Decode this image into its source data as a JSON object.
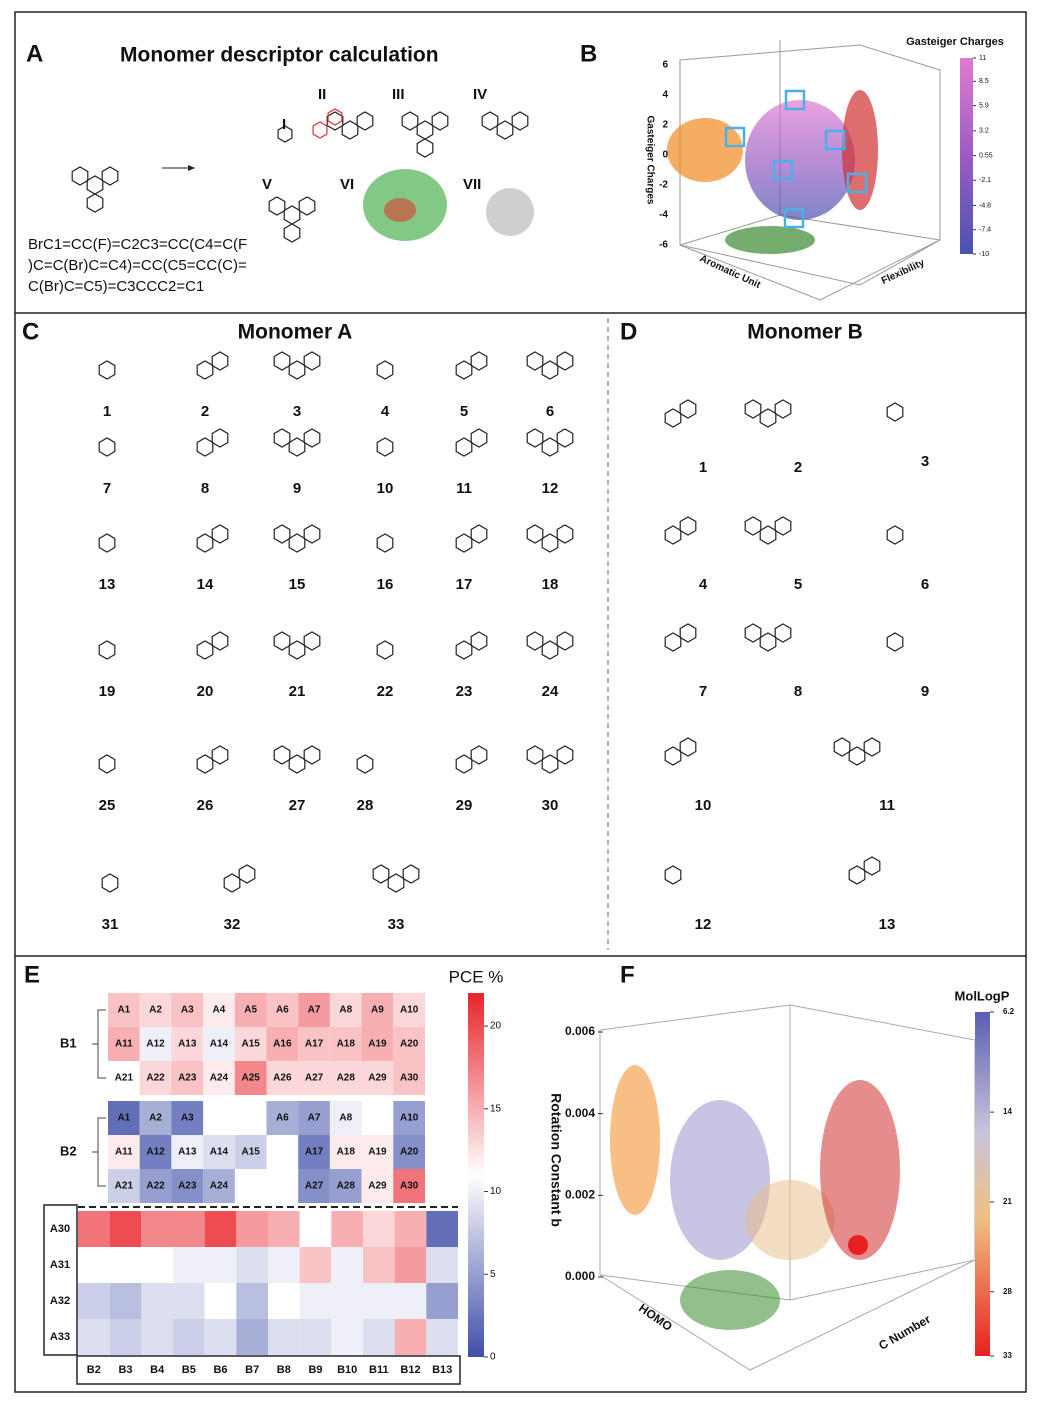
{
  "panels": {
    "A": {
      "label": "A",
      "title": "Monomer descriptor calculation",
      "numerals": [
        "I",
        "II",
        "III",
        "IV",
        "V",
        "VI",
        "VII"
      ],
      "smiles": [
        "BrC1=CC(F)=C2C3=CC(C4=C(F",
        ")C=C(Br)C=C4)=CC(C5=CC(C)=",
        "C(Br)C=C5)=C3CCC2=C1"
      ]
    },
    "B": {
      "label": "B",
      "colorbar_title": "Gasteiger Charges",
      "colorbar_lim": [
        -10,
        11
      ],
      "colorbar_ticks": [
        11,
        8.5,
        5.9,
        3.2,
        0.55,
        -2.1,
        -4.8,
        -7.4,
        -10
      ],
      "yticks": [
        6,
        4,
        2,
        0,
        -2,
        -4,
        -6
      ],
      "axis_labels": [
        "Gasteiger Charges",
        "Aromatic Unit",
        "Flexibility"
      ]
    },
    "C": {
      "label": "C",
      "title": "Monomer A",
      "numbers": [
        1,
        2,
        3,
        4,
        5,
        6,
        7,
        8,
        9,
        10,
        11,
        12,
        13,
        14,
        15,
        16,
        17,
        18,
        19,
        20,
        21,
        22,
        23,
        24,
        25,
        26,
        27,
        28,
        29,
        30,
        31,
        32,
        33
      ]
    },
    "D": {
      "label": "D",
      "title": "Monomer B",
      "numbers": [
        1,
        2,
        3,
        4,
        5,
        6,
        7,
        8,
        9,
        10,
        11,
        12,
        13
      ]
    },
    "E": {
      "label": "E",
      "colorbar": {
        "title": "PCE %",
        "lim": [
          0,
          22
        ],
        "ticks": [
          0,
          5,
          10,
          15,
          20
        ]
      },
      "groups": [
        {
          "name": "B1",
          "cells": [
            [
              "A1",
              "A2",
              "A3",
              "A4",
              "A5",
              "A6",
              "A7",
              "A8",
              "A9",
              "A10"
            ],
            [
              "A11",
              "A12",
              "A13",
              "A14",
              "A15",
              "A16",
              "A17",
              "A18",
              "A19",
              "A20"
            ],
            [
              "A21",
              "A22",
              "A23",
              "A24",
              "A25",
              "A26",
              "A27",
              "A28",
              "A29",
              "A30"
            ]
          ],
          "values": [
            [
              14,
              13,
              14,
              12,
              15,
              14,
              16,
              13,
              15,
              13
            ],
            [
              15,
              10,
              13,
              10,
              13,
              15,
              14,
              14,
              15,
              14
            ],
            [
              11,
              13,
              14,
              12,
              17,
              13,
              13,
              13,
              13,
              14
            ]
          ]
        },
        {
          "name": "B2",
          "cells": [
            [
              "A1",
              "A2",
              "A3",
              null,
              null,
              "A6",
              "A7",
              "A8",
              null,
              "A10"
            ],
            [
              "A11",
              "A12",
              "A13",
              "A14",
              "A15",
              null,
              "A17",
              "A18",
              "A19",
              "A20"
            ],
            [
              "A21",
              "A22",
              "A23",
              "A24",
              null,
              null,
              "A27",
              "A28",
              "A29",
              "A30"
            ]
          ],
          "values": [
            [
              2,
              6,
              3,
              null,
              null,
              6,
              5,
              10,
              null,
              5
            ],
            [
              12,
              3,
              10,
              9,
              8,
              null,
              3,
              12,
              12,
              4
            ],
            [
              8,
              5,
              4,
              6,
              null,
              null,
              4,
              5,
              12,
              18
            ]
          ]
        }
      ],
      "bottom": {
        "rows": [
          "A30",
          "A31",
          "A32",
          "A33"
        ],
        "cols": [
          "B2",
          "B3",
          "B4",
          "B5",
          "B6",
          "B7",
          "B8",
          "B9",
          "B10",
          "B11",
          "B12",
          "B13"
        ],
        "values": [
          [
            18,
            20,
            17,
            17,
            20,
            16,
            15,
            11,
            15,
            13,
            15,
            2
          ],
          [
            11,
            11,
            11,
            10,
            10,
            9,
            10,
            14,
            10,
            14,
            16,
            9
          ],
          [
            8,
            7,
            9,
            9,
            11,
            7,
            11,
            10,
            10,
            10,
            10,
            5
          ],
          [
            9,
            8,
            9,
            8,
            9,
            6,
            9,
            9,
            10,
            9,
            15,
            9
          ]
        ]
      }
    },
    "F": {
      "label": "F",
      "colorbar_title": "MolLogP",
      "colorbar_lim": [
        6.2,
        33
      ],
      "colorbar_ticks": [
        6.2,
        14,
        21,
        28,
        33
      ],
      "ylim": [
        0,
        0.006
      ],
      "yticks": [
        0.006,
        0.004,
        0.002,
        {
          "value": 0,
          "label": "0.000"
        }
      ],
      "axis_labels": [
        "Rotation Constant b",
        "HOMO",
        "C Number"
      ]
    }
  }
}
